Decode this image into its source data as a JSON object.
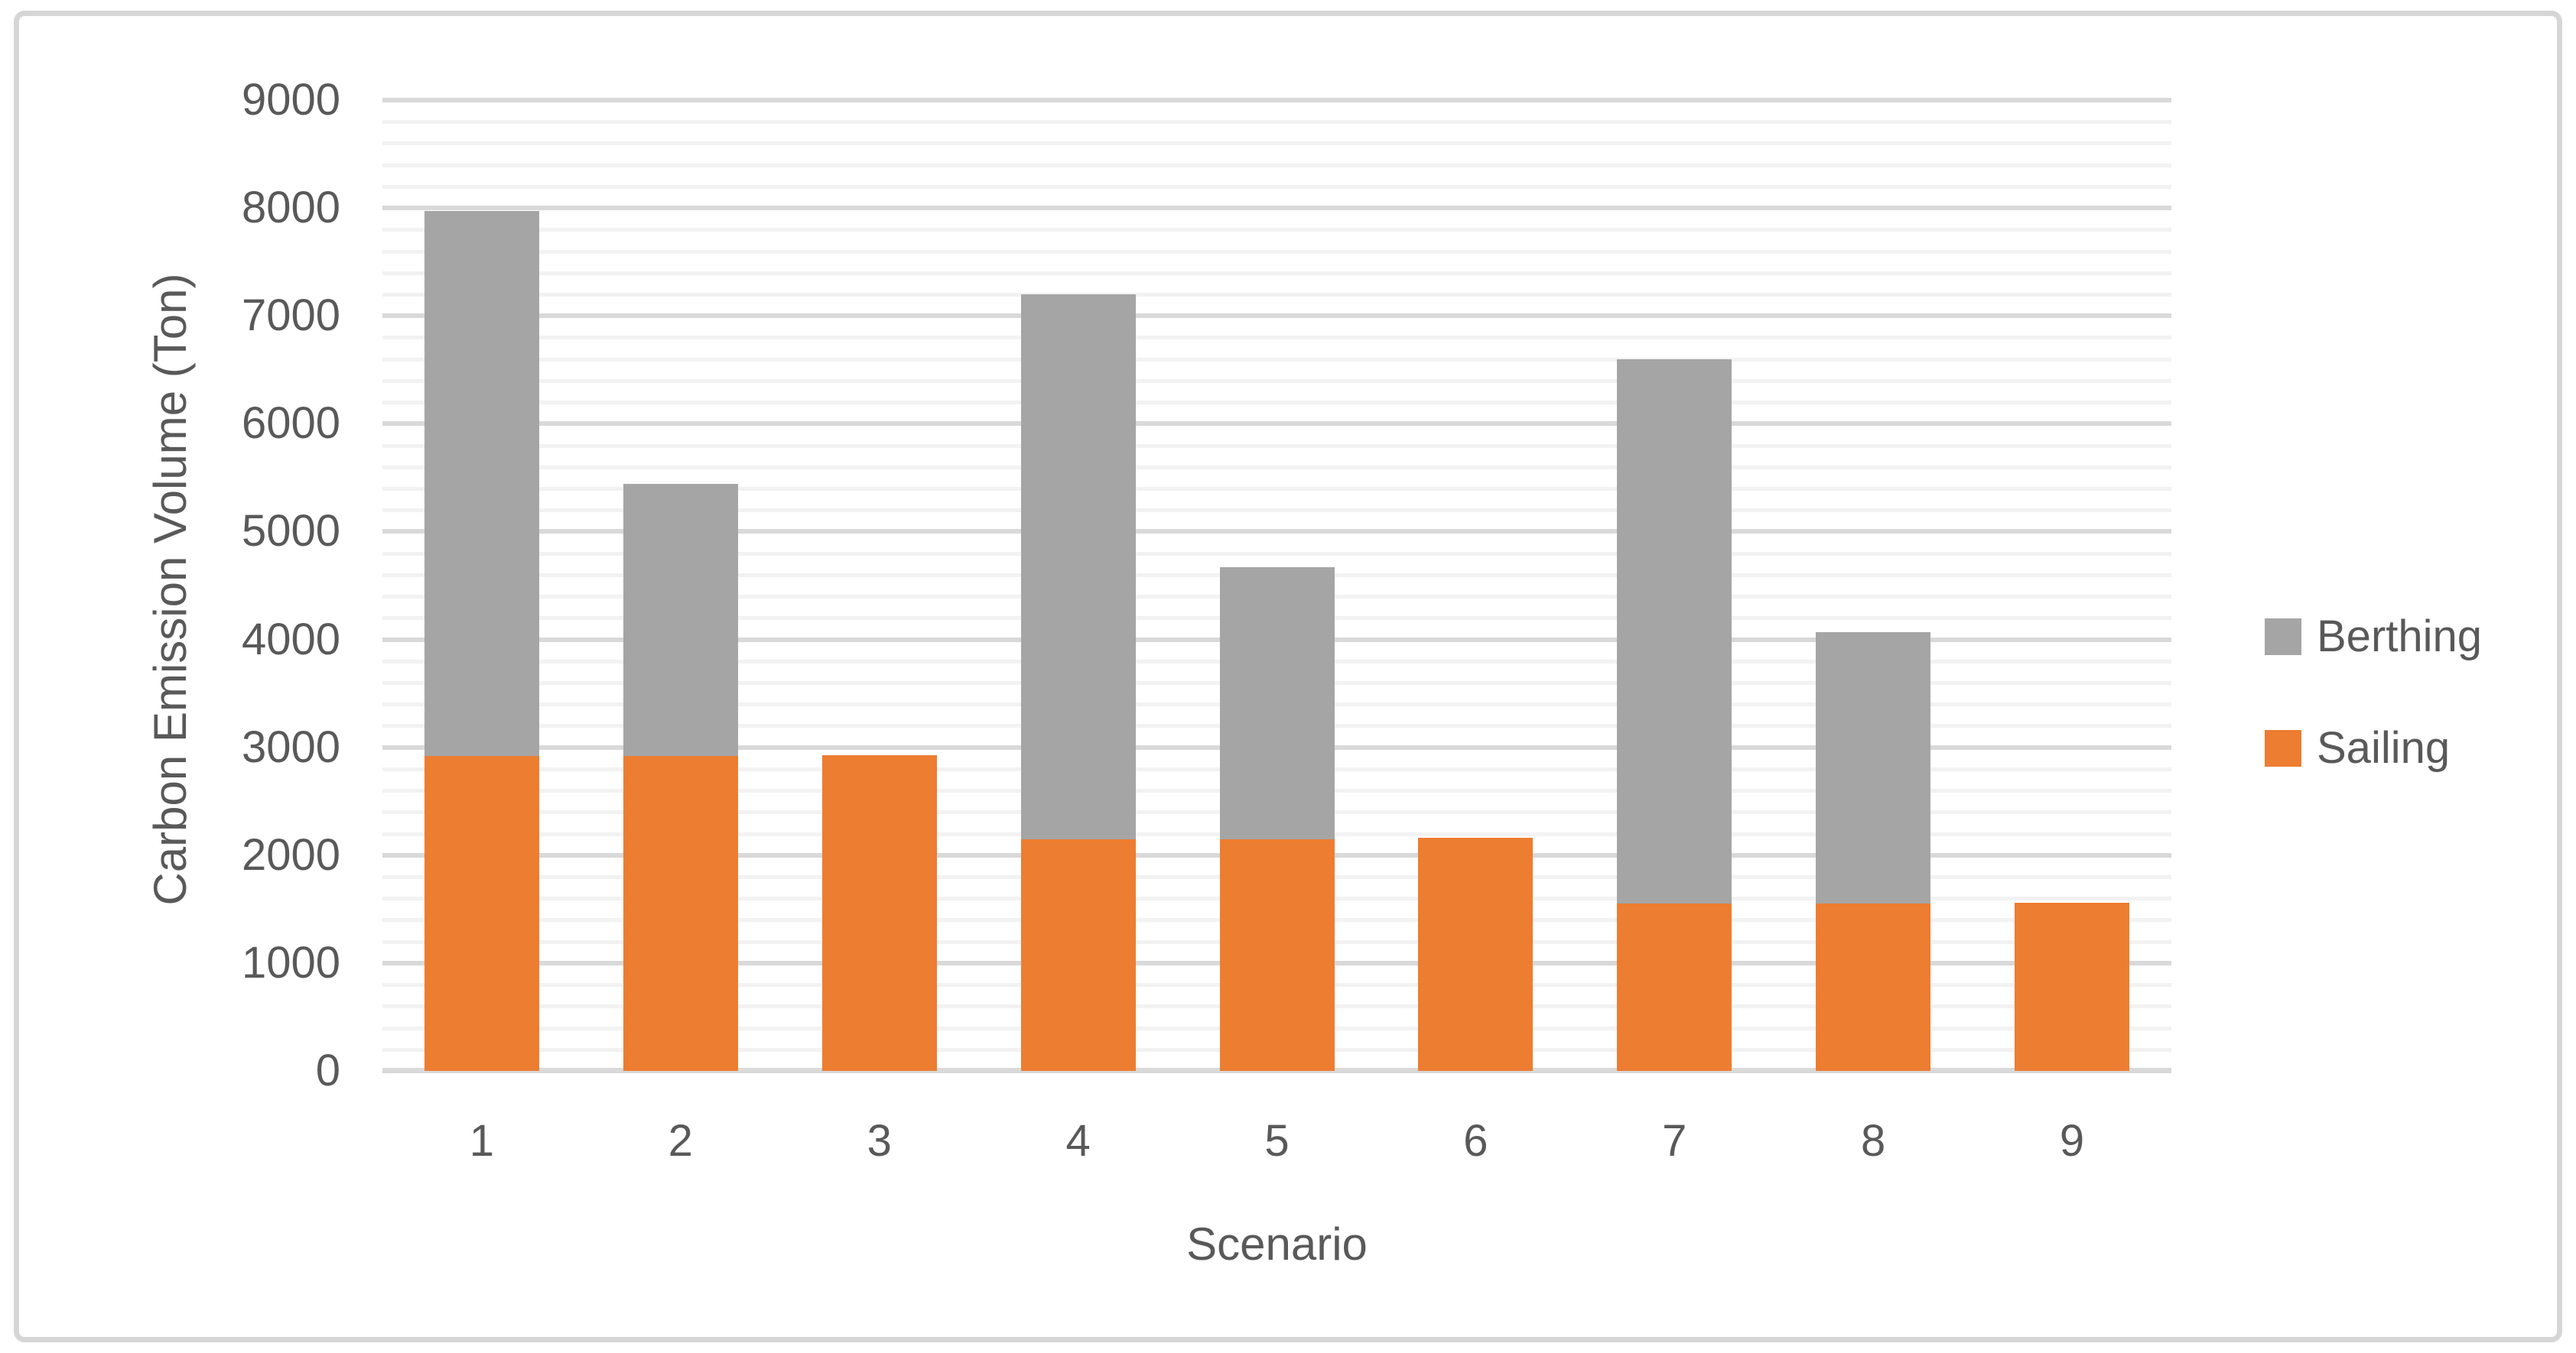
{
  "chart_data": {
    "type": "bar",
    "stacked": true,
    "categories": [
      "1",
      "2",
      "3",
      "4",
      "5",
      "6",
      "7",
      "8",
      "9"
    ],
    "series": [
      {
        "name": "Sailing",
        "color": "#ED7D31",
        "values": [
          2920,
          2920,
          2930,
          2150,
          2150,
          2160,
          1550,
          1550,
          1560
        ]
      },
      {
        "name": "Berthing",
        "color": "#A5A5A5",
        "values": [
          5050,
          2520,
          0,
          5050,
          2520,
          0,
          5050,
          2520,
          0
        ]
      }
    ],
    "totals": [
      7970,
      5440,
      2930,
      7200,
      4670,
      2160,
      6600,
      4070,
      1560
    ],
    "xlabel": "Scenario",
    "ylabel": "Carbon Emission Volume (Ton)",
    "ylim": [
      0,
      9000
    ],
    "yticks": [
      "0",
      "1000",
      "2000",
      "3000",
      "4000",
      "5000",
      "6000",
      "7000",
      "8000",
      "9000"
    ],
    "ytick_step": 1000,
    "minor_gridline_step": 200,
    "grid": true,
    "legend_position": "right"
  },
  "legend": {
    "items": [
      {
        "label": "Berthing",
        "color": "#A5A5A5"
      },
      {
        "label": "Sailing",
        "color": "#ED7D31"
      }
    ]
  },
  "colors": {
    "text": "#595959",
    "major_gridline": "#D9D9D9",
    "minor_gridline": "#F2F2F2",
    "frame_border": "#D6D6D6",
    "background": "#FFFFFF"
  }
}
